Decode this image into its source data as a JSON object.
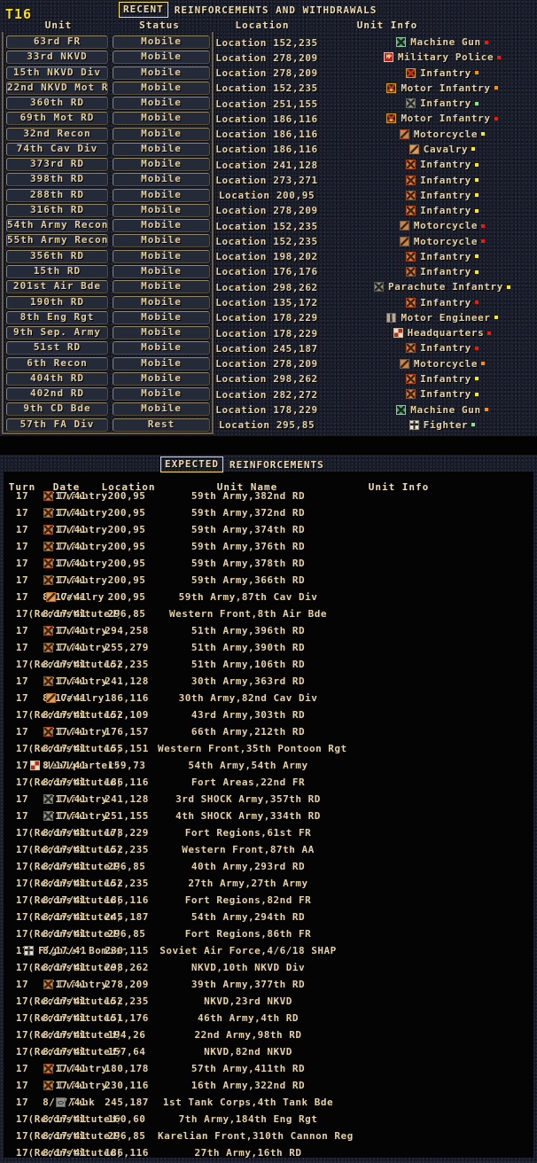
{
  "app": {
    "turn_label": "T16"
  },
  "colors": {
    "accent_yellow": "#ffe14a",
    "text_cream": "#e6d2a2",
    "dots": {
      "red": "#ee1c00",
      "orange": "#ff9000",
      "yellow": "#ffe820",
      "green": "#84e884"
    }
  },
  "recent": {
    "title_boxed": "RECENT",
    "title_rest": "REINFORCEMENTS AND WITHDRAWALS",
    "headers": {
      "unit": "Unit",
      "status": "Status",
      "location": "Location",
      "info": "Unit Info"
    },
    "rows": [
      {
        "unit": "63rd FR",
        "status": "Mobile",
        "location": "Location 152,235",
        "icon": "machine-gun",
        "info": "Machine Gun",
        "dot": "red"
      },
      {
        "unit": "33rd NKVD",
        "status": "Mobile",
        "location": "Location 278,209",
        "icon": "military-police",
        "info": "Military Police",
        "dot": "red"
      },
      {
        "unit": "15th NKVD Div",
        "status": "Mobile",
        "location": "Location 278,209",
        "icon": "infantry-nkvd",
        "info": "Infantry",
        "dot": "orange"
      },
      {
        "unit": "22nd NKVD Mot RD",
        "status": "Mobile",
        "location": "Location 152,235",
        "icon": "motor-infantry-nkvd",
        "info": "Motor Infantry",
        "dot": "orange"
      },
      {
        "unit": "360th RD",
        "status": "Mobile",
        "location": "Location 251,155",
        "icon": "infantry-gray",
        "info": "Infantry",
        "dot": "green"
      },
      {
        "unit": "69th Mot RD",
        "status": "Mobile",
        "location": "Location 186,116",
        "icon": "motor-infantry-nkvd",
        "info": "Motor Infantry",
        "dot": "red"
      },
      {
        "unit": "32nd Recon",
        "status": "Mobile",
        "location": "Location 186,116",
        "icon": "motorcycle",
        "info": "Motorcycle",
        "dot": "yellow"
      },
      {
        "unit": "74th Cav Div",
        "status": "Mobile",
        "location": "Location 186,116",
        "icon": "cavalry",
        "info": "Cavalry",
        "dot": "yellow"
      },
      {
        "unit": "373rd RD",
        "status": "Mobile",
        "location": "Location 241,128",
        "icon": "infantry-tan",
        "info": "Infantry",
        "dot": "yellow"
      },
      {
        "unit": "398th RD",
        "status": "Mobile",
        "location": "Location 273,271",
        "icon": "infantry-tan",
        "info": "Infantry",
        "dot": "yellow"
      },
      {
        "unit": "288th RD",
        "status": "Mobile",
        "location": "Location 200,95",
        "icon": "infantry-tan",
        "info": "Infantry",
        "dot": "yellow"
      },
      {
        "unit": "316th RD",
        "status": "Mobile",
        "location": "Location 278,209",
        "icon": "infantry-tan",
        "info": "Infantry",
        "dot": "yellow"
      },
      {
        "unit": "54th Army Recon",
        "status": "Mobile",
        "location": "Location 152,235",
        "icon": "motorcycle",
        "info": "Motorcycle",
        "dot": "red"
      },
      {
        "unit": "55th Army Recon",
        "status": "Mobile",
        "location": "Location 152,235",
        "icon": "motorcycle",
        "info": "Motorcycle",
        "dot": "red"
      },
      {
        "unit": "356th RD",
        "status": "Mobile",
        "location": "Location 198,202",
        "icon": "infantry-tan",
        "info": "Infantry",
        "dot": "yellow"
      },
      {
        "unit": "15th RD",
        "status": "Mobile",
        "location": "Location 176,176",
        "icon": "infantry-tan",
        "info": "Infantry",
        "dot": "yellow"
      },
      {
        "unit": "201st Air Bde",
        "status": "Mobile",
        "location": "Location 298,262",
        "icon": "parachute",
        "info": "Parachute Infantry",
        "dot": "yellow"
      },
      {
        "unit": "190th RD",
        "status": "Mobile",
        "location": "Location 135,172",
        "icon": "infantry-tan",
        "info": "Infantry",
        "dot": "red"
      },
      {
        "unit": "8th Eng Rgt",
        "status": "Mobile",
        "location": "Location 178,229",
        "icon": "motor-engineer",
        "info": "Motor Engineer",
        "dot": "yellow"
      },
      {
        "unit": "9th Sep. Army",
        "status": "Mobile",
        "location": "Location 178,229",
        "icon": "headquarters",
        "info": "Headquarters",
        "dot": "red"
      },
      {
        "unit": "51st RD",
        "status": "Mobile",
        "location": "Location 245,187",
        "icon": "infantry-tan",
        "info": "Infantry",
        "dot": "red"
      },
      {
        "unit": "6th Recon",
        "status": "Mobile",
        "location": "Location 278,209",
        "icon": "motorcycle",
        "info": "Motorcycle",
        "dot": "orange"
      },
      {
        "unit": "404th RD",
        "status": "Mobile",
        "location": "Location 298,262",
        "icon": "infantry-tan",
        "info": "Infantry",
        "dot": "yellow"
      },
      {
        "unit": "402nd RD",
        "status": "Mobile",
        "location": "Location 282,272",
        "icon": "infantry-tan",
        "info": "Infantry",
        "dot": "yellow"
      },
      {
        "unit": "9th CD Bde",
        "status": "Mobile",
        "location": "Location 178,229",
        "icon": "machine-gun",
        "info": "Machine Gun",
        "dot": "orange"
      },
      {
        "unit": "57th FA Div",
        "status": "Rest",
        "location": "Location 295,85",
        "icon": "fighter",
        "info": "Fighter",
        "dot": "green"
      }
    ]
  },
  "expected": {
    "title_boxed": "EXPECTED",
    "title_rest": "REINFORCEMENTS",
    "headers": {
      "turn": "Turn",
      "date": "Date",
      "location": "Location",
      "unit_name": "Unit Name",
      "info": "Unit Info"
    },
    "rows": [
      {
        "turn": "17",
        "date": "8/17/41",
        "location": "200,95",
        "unit_name": "59th Army,382nd RD",
        "icon": "infantry-tan",
        "info": "Infantry"
      },
      {
        "turn": "17",
        "date": "8/17/41",
        "location": "200,95",
        "unit_name": "59th Army,372nd RD",
        "icon": "infantry-tan",
        "info": "Infantry"
      },
      {
        "turn": "17",
        "date": "8/17/41",
        "location": "200,95",
        "unit_name": "59th Army,374th RD",
        "icon": "infantry-tan",
        "info": "Infantry"
      },
      {
        "turn": "17",
        "date": "8/17/41",
        "location": "200,95",
        "unit_name": "59th Army,376th RD",
        "icon": "infantry-tan",
        "info": "Infantry"
      },
      {
        "turn": "17",
        "date": "8/17/41",
        "location": "200,95",
        "unit_name": "59th Army,378th RD",
        "icon": "infantry-tan",
        "info": "Infantry"
      },
      {
        "turn": "17",
        "date": "8/17/41",
        "location": "200,95",
        "unit_name": "59th Army,366th RD",
        "icon": "infantry-tan",
        "info": "Infantry"
      },
      {
        "turn": "17",
        "date": "8/17/41",
        "location": "200,95",
        "unit_name": "59th Army,87th Cav Div",
        "icon": "cavalry",
        "info": "Cavalry"
      },
      {
        "turn": "17",
        "date": "8/17/41",
        "location": "296,85",
        "unit_name": "Western Front,8th Air Bde",
        "icon": null,
        "info": "(Reconstituted)"
      },
      {
        "turn": "17",
        "date": "8/17/41",
        "location": "294,258",
        "unit_name": "51th Army,396th RD",
        "icon": "infantry-tan",
        "info": "Infantry"
      },
      {
        "turn": "17",
        "date": "8/17/41",
        "location": "255,279",
        "unit_name": "51th Army,390th RD",
        "icon": "infantry-tan",
        "info": "Infantry"
      },
      {
        "turn": "17",
        "date": "8/17/41",
        "location": "152,235",
        "unit_name": "51th Army,106th RD",
        "icon": null,
        "info": "(Reconstituted)"
      },
      {
        "turn": "17",
        "date": "8/17/41",
        "location": "241,128",
        "unit_name": "30th Army,363rd RD",
        "icon": "infantry-tan",
        "info": "Infantry"
      },
      {
        "turn": "17",
        "date": "8/17/41",
        "location": "186,116",
        "unit_name": "30th Army,82nd Cav Div",
        "icon": "cavalry",
        "info": "Cavalry"
      },
      {
        "turn": "17",
        "date": "8/17/41",
        "location": "152,109",
        "unit_name": "43rd Army,303th RD",
        "icon": null,
        "info": "(Reconstituted)"
      },
      {
        "turn": "17",
        "date": "8/17/41",
        "location": "176,157",
        "unit_name": "66th Army,212th RD",
        "icon": "infantry-tan",
        "info": "Infantry"
      },
      {
        "turn": "17",
        "date": "8/17/41",
        "location": "155,151",
        "unit_name": "Western Front,35th Pontoon Rgt",
        "icon": null,
        "info": "(Reconstituted)"
      },
      {
        "turn": "17",
        "date": "8/17/41",
        "location": "159,73",
        "unit_name": "54th Army,54th Army",
        "icon": "headquarters",
        "info": "Headquarters"
      },
      {
        "turn": "17",
        "date": "8/17/41",
        "location": "186,116",
        "unit_name": "Fort Areas,22nd FR",
        "icon": null,
        "info": "(Reconstituted)"
      },
      {
        "turn": "17",
        "date": "8/17/41",
        "location": "241,128",
        "unit_name": "3rd SHOCK Army,357th RD",
        "icon": "infantry-gray",
        "info": "Infantry"
      },
      {
        "turn": "17",
        "date": "8/17/41",
        "location": "251,155",
        "unit_name": "4th SHOCK Army,334th RD",
        "icon": "infantry-gray",
        "info": "Infantry"
      },
      {
        "turn": "17",
        "date": "8/17/41",
        "location": "178,229",
        "unit_name": "Fort Regions,61st FR",
        "icon": null,
        "info": "(Reconstituted)"
      },
      {
        "turn": "17",
        "date": "8/17/41",
        "location": "152,235",
        "unit_name": "Western Front,87th AA",
        "icon": null,
        "info": "(Reconstituted)"
      },
      {
        "turn": "17",
        "date": "8/17/41",
        "location": "296,85",
        "unit_name": "40th Army,293rd RD",
        "icon": null,
        "info": "(Reconstituted)"
      },
      {
        "turn": "17",
        "date": "8/17/41",
        "location": "152,235",
        "unit_name": "27th Army,27th Army",
        "icon": null,
        "info": "(Reconstituted)"
      },
      {
        "turn": "17",
        "date": "8/17/41",
        "location": "186,116",
        "unit_name": "Fort Regions,82nd FR",
        "icon": null,
        "info": "(Reconstituted)"
      },
      {
        "turn": "17",
        "date": "8/17/41",
        "location": "245,187",
        "unit_name": "54th Army,294th RD",
        "icon": null,
        "info": "(Reconstituted)"
      },
      {
        "turn": "17",
        "date": "8/17/41",
        "location": "296,85",
        "unit_name": "Fort Regions,86th FR",
        "icon": null,
        "info": "(Reconstituted)"
      },
      {
        "turn": "17",
        "date": "8/17/41",
        "location": "230,115",
        "unit_name": "Soviet Air Force,4/6/18 SHAP",
        "icon": "fighter-bomber",
        "info": "Fighter Bomber"
      },
      {
        "turn": "17",
        "date": "8/17/41",
        "location": "298,262",
        "unit_name": "NKVD,10th NKVD Div",
        "icon": null,
        "info": "(Reconstituted)"
      },
      {
        "turn": "17",
        "date": "8/17/41",
        "location": "278,209",
        "unit_name": "39th Army,377th RD",
        "icon": "infantry-tan",
        "info": "Infantry"
      },
      {
        "turn": "17",
        "date": "8/17/41",
        "location": "152,235",
        "unit_name": "NKVD,23rd NKVD",
        "icon": null,
        "info": "(Reconstituted)"
      },
      {
        "turn": "17",
        "date": "8/17/41",
        "location": "151,176",
        "unit_name": "46th Army,4th RD",
        "icon": null,
        "info": "(Reconstituted)"
      },
      {
        "turn": "17",
        "date": "8/17/41",
        "location": "194,26",
        "unit_name": "22nd Army,98th RD",
        "icon": null,
        "info": "(Reconstituted)"
      },
      {
        "turn": "17",
        "date": "8/17/41",
        "location": "157,64",
        "unit_name": "NKVD,82nd NKVD",
        "icon": null,
        "info": "(Reconstituted)"
      },
      {
        "turn": "17",
        "date": "8/17/41",
        "location": "180,178",
        "unit_name": "57th Army,411th RD",
        "icon": "infantry-tan",
        "info": "Infantry"
      },
      {
        "turn": "17",
        "date": "8/17/41",
        "location": "230,116",
        "unit_name": "16th Army,322nd RD",
        "icon": "infantry-tan",
        "info": "Infantry"
      },
      {
        "turn": "17",
        "date": "8/17/41",
        "location": "245,187",
        "unit_name": "1st Tank Corps,4th Tank Bde",
        "icon": "tank",
        "info": "Tank"
      },
      {
        "turn": "17",
        "date": "8/17/41",
        "location": "160,60",
        "unit_name": "7th Army,184th Eng Rgt",
        "icon": null,
        "info": "(Reconstituted)"
      },
      {
        "turn": "17",
        "date": "8/17/41",
        "location": "296,85",
        "unit_name": "Karelian Front,310th Cannon Reg",
        "icon": null,
        "info": "(Reconstituted)"
      },
      {
        "turn": "17",
        "date": "8/17/41",
        "location": "186,116",
        "unit_name": "27th Army,16th RD",
        "icon": null,
        "info": "(Reconstituted)"
      }
    ]
  }
}
